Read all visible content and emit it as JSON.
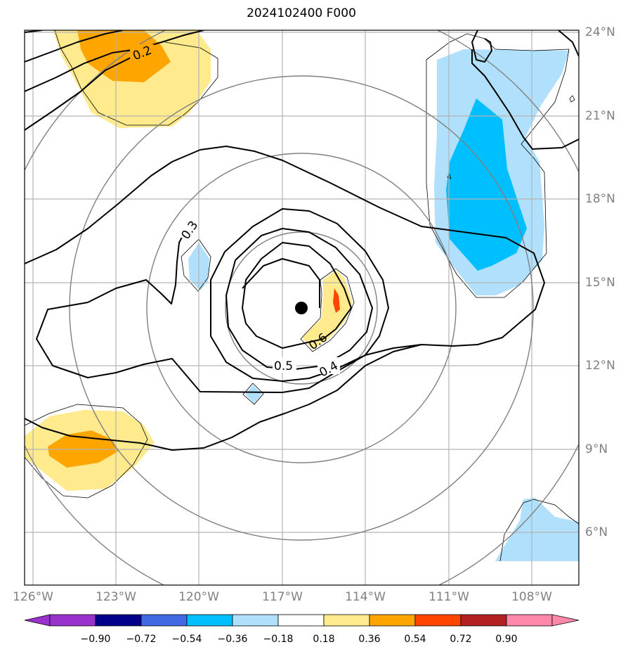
{
  "title": "2024102400 F000",
  "map": {
    "lon_range": [
      "126°W",
      "107°W"
    ],
    "lat_range": [
      "4°N",
      "24°N"
    ],
    "lon_ticks": [
      "126°W",
      "123°W",
      "120°W",
      "117°W",
      "114°W",
      "111°W",
      "108°W"
    ],
    "lat_ticks": [
      "24°N",
      "21°N",
      "18°N",
      "15°N",
      "12°N",
      "9°N",
      "6°N"
    ],
    "storm_center": {
      "lon": -116.3,
      "lat": 14.1
    },
    "contour_labels": [
      "0.2",
      "0.3",
      "0.4",
      "0.5",
      "0.6"
    ],
    "fill_colors": {
      "light_yellow": "#ffea8e",
      "orange": "#ffa500",
      "red_orange": "#ff4500",
      "light_blue": "#b0e0fc",
      "deep_sky_blue": "#00bfff"
    }
  },
  "colorbar": {
    "ticks": [
      "−0.90",
      "−0.72",
      "−0.54",
      "−0.36",
      "−0.18",
      "0.18",
      "0.36",
      "0.54",
      "0.72",
      "0.90"
    ],
    "colors": [
      "#9932cc",
      "#00008b",
      "#4169e1",
      "#00bfff",
      "#b0e0fc",
      "#ffffff",
      "#ffea8e",
      "#ffa500",
      "#ff4500",
      "#b22222",
      "#ff88aa",
      "#ff88aa"
    ]
  }
}
